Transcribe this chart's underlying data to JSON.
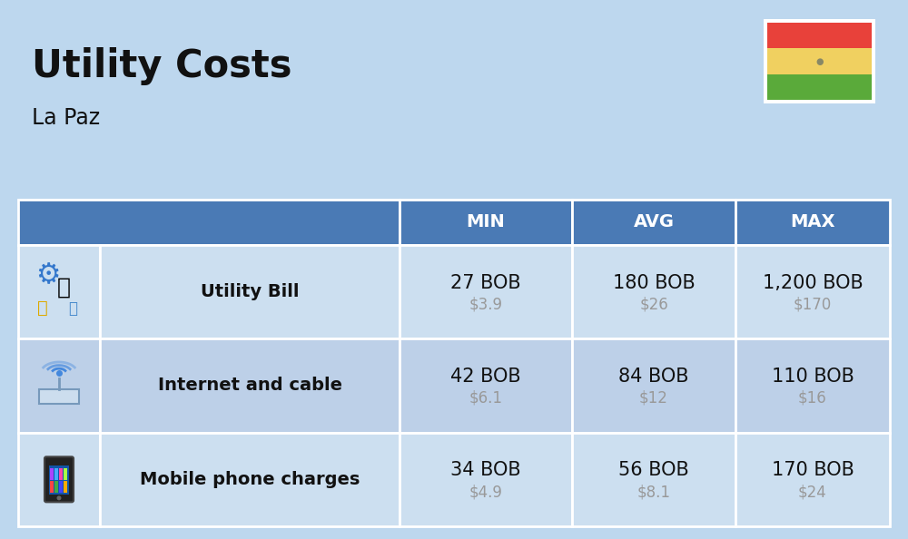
{
  "title": "Utility Costs",
  "subtitle": "La Paz",
  "background_color": "#bdd7ee",
  "header_color": "#4a7ab5",
  "header_text_color": "#ffffff",
  "row_colors": [
    "#ccdff0",
    "#bdd0e8"
  ],
  "text_color": "#111111",
  "usd_color": "#999999",
  "col_headers": [
    "MIN",
    "AVG",
    "MAX"
  ],
  "rows": [
    {
      "label": "Utility Bill",
      "min_bob": "27 BOB",
      "min_usd": "$3.9",
      "avg_bob": "180 BOB",
      "avg_usd": "$26",
      "max_bob": "1,200 BOB",
      "max_usd": "$170",
      "icon": "utility"
    },
    {
      "label": "Internet and cable",
      "min_bob": "42 BOB",
      "min_usd": "$6.1",
      "avg_bob": "84 BOB",
      "avg_usd": "$12",
      "max_bob": "110 BOB",
      "max_usd": "$16",
      "icon": "internet"
    },
    {
      "label": "Mobile phone charges",
      "min_bob": "34 BOB",
      "min_usd": "$4.9",
      "avg_bob": "56 BOB",
      "avg_usd": "$8.1",
      "max_bob": "170 BOB",
      "max_usd": "$24",
      "icon": "mobile"
    }
  ],
  "flag_colors": {
    "red": "#e8413a",
    "yellow": "#f0d060",
    "green": "#5aaa3a"
  },
  "title_fontsize": 30,
  "subtitle_fontsize": 17,
  "header_fontsize": 14,
  "label_fontsize": 14,
  "bob_fontsize": 15,
  "usd_fontsize": 12
}
